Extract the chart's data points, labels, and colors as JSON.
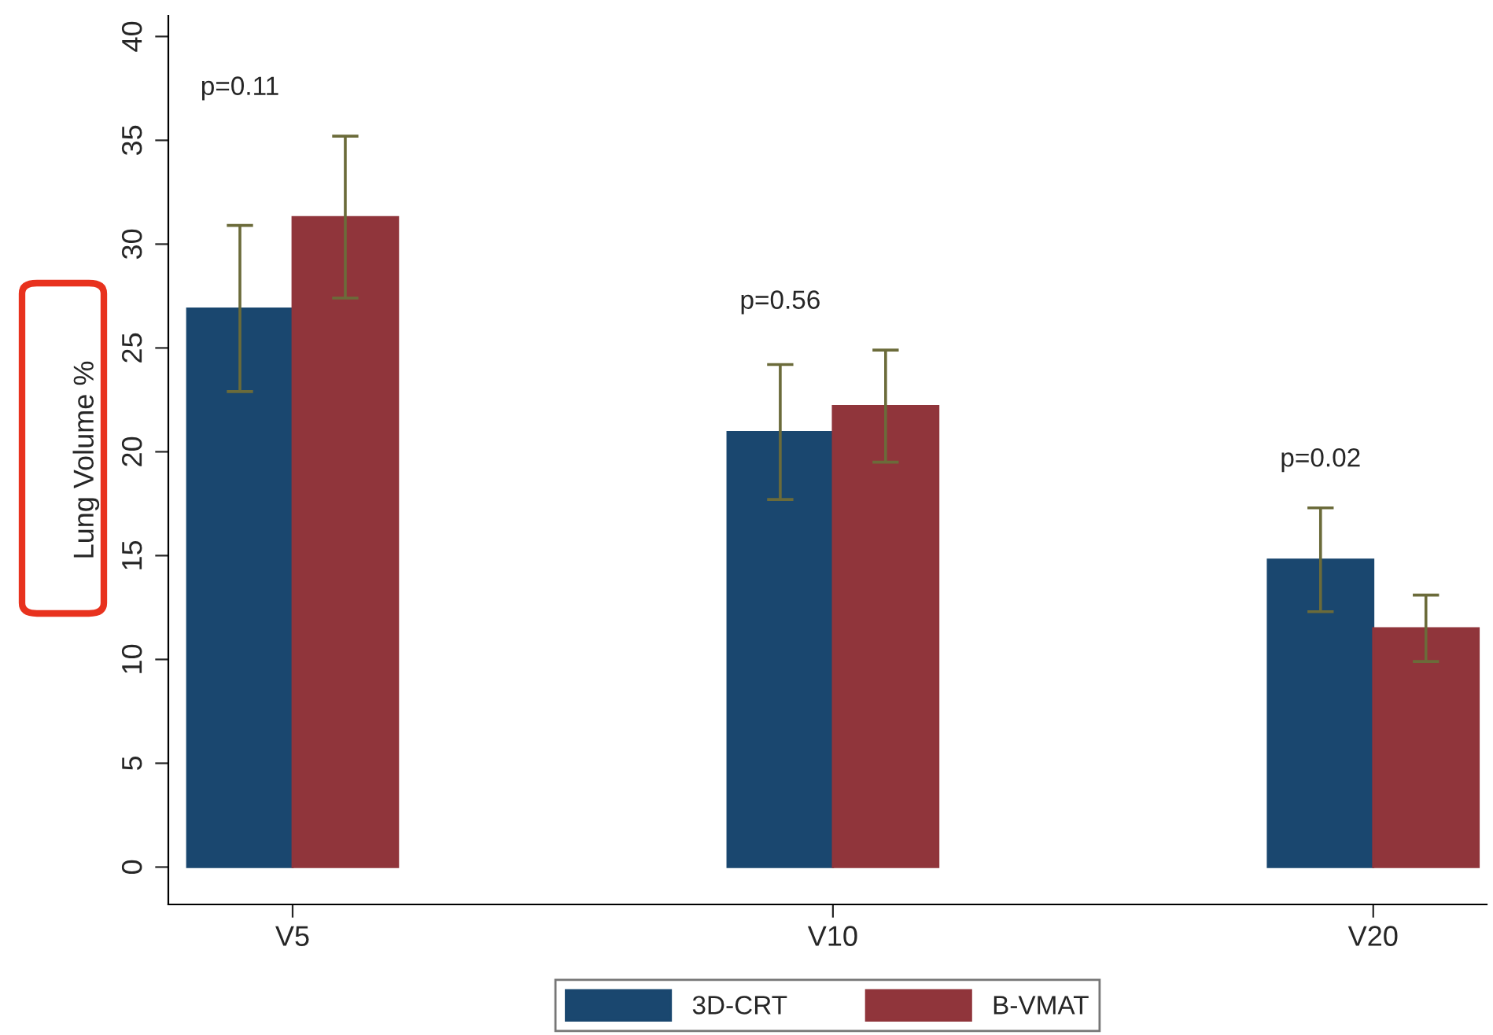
{
  "chart_data": {
    "type": "bar",
    "ylabel": "Lung Volume %",
    "categories": [
      "V5",
      "V10",
      "V20"
    ],
    "series": [
      {
        "name": "3D-CRT",
        "color": "#1a476f",
        "values": [
          26.9,
          20.95,
          14.8
        ],
        "errors": [
          4.0,
          3.25,
          2.5
        ]
      },
      {
        "name": "B-VMAT",
        "color": "#90353b",
        "values": [
          31.3,
          22.2,
          11.5
        ],
        "errors": [
          3.9,
          2.7,
          1.6
        ]
      }
    ],
    "ylim": [
      -1.8,
      41
    ],
    "yticks": [
      0,
      5,
      10,
      15,
      20,
      25,
      30,
      35,
      40
    ],
    "annotations": [
      "p=0.11",
      "p=0.56",
      "p=0.02"
    ],
    "grid": false,
    "legend": "bottom"
  }
}
